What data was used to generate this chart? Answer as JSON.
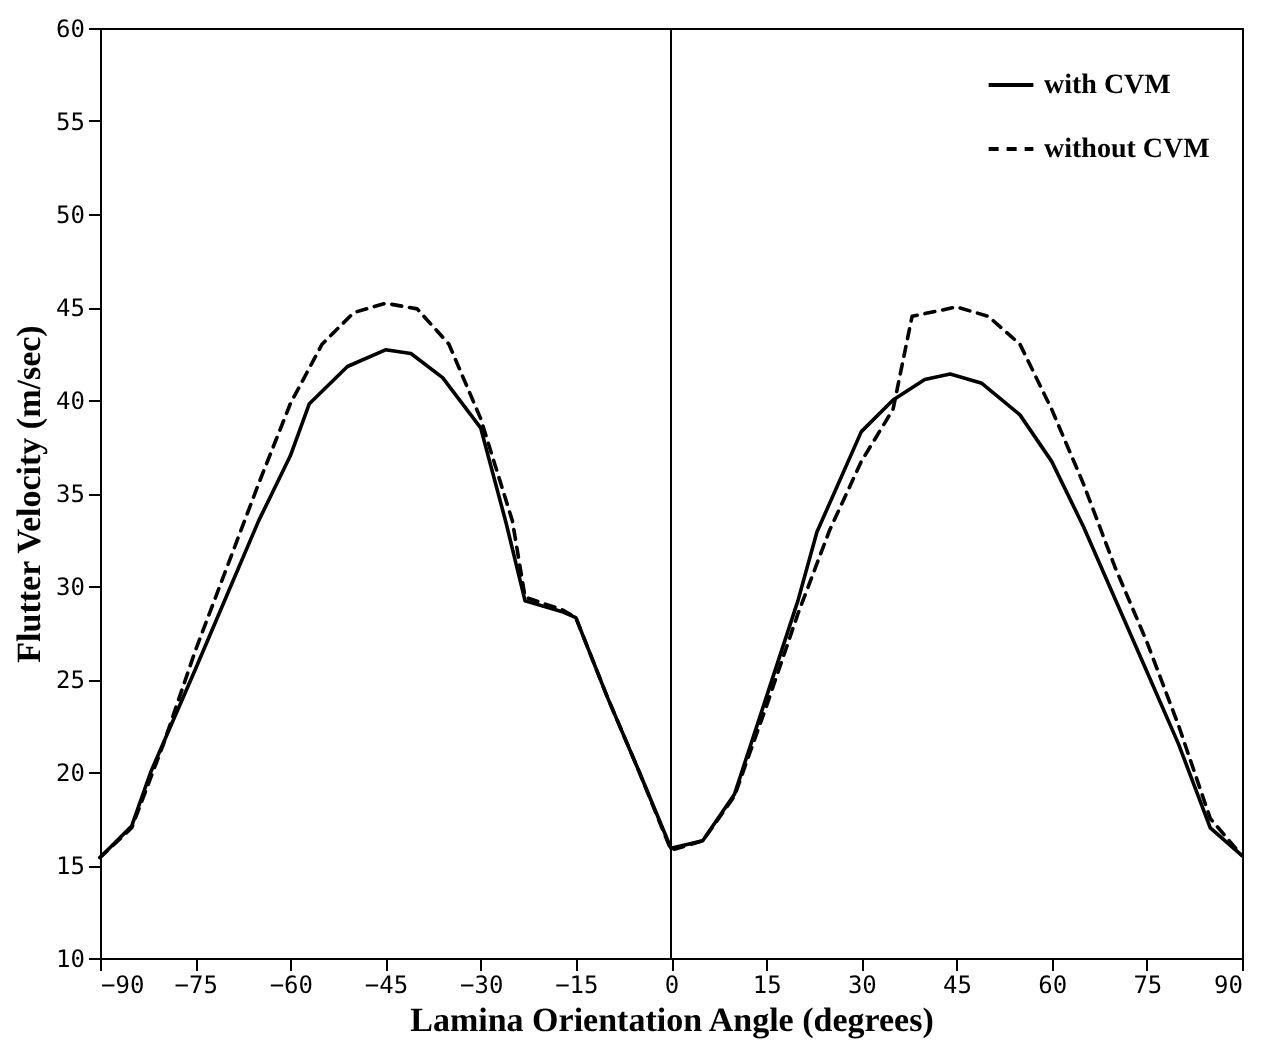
{
  "chart_data": {
    "type": "line",
    "xlabel": "Lamina Orientation Angle (degrees)",
    "ylabel": "Flutter Velocity (m/sec)",
    "xlim": [
      -90,
      90
    ],
    "xticks": [
      -90,
      -75,
      -60,
      -45,
      -30,
      -15,
      0,
      15,
      30,
      45,
      60,
      75,
      90
    ],
    "ylim": [
      10,
      60
    ],
    "yticks": [
      10,
      15,
      20,
      25,
      30,
      35,
      40,
      45,
      50,
      55,
      60
    ],
    "grid": false,
    "legend": "top right",
    "marker": "none",
    "ref_lines": [
      {
        "axis": "x",
        "value": 0,
        "color": "#000000",
        "line_style": "solid"
      }
    ],
    "series": [
      {
        "name": "with CVM",
        "color": "#000000",
        "line_style": "solid",
        "x": [
          -90,
          -85,
          -82,
          -75,
          -70,
          -65,
          -60,
          -57,
          -51,
          -45,
          -41,
          -36,
          -30,
          -26,
          -23,
          -17,
          -15,
          -10,
          -5,
          0,
          5,
          10,
          15,
          20,
          23,
          30,
          35,
          40,
          44,
          49,
          55,
          60,
          65,
          70,
          75,
          80,
          85,
          90
        ],
        "values": [
          15.4,
          17.1,
          20,
          25.5,
          29.5,
          33.5,
          37,
          39.8,
          41.8,
          42.7,
          42.5,
          41.2,
          38.5,
          33.4,
          29.2,
          28.6,
          28.3,
          24,
          20,
          15.9,
          16.3,
          18.8,
          24,
          29.2,
          32.9,
          38.3,
          40,
          41.1,
          41.4,
          40.9,
          39.2,
          36.7,
          33.2,
          29.3,
          25.4,
          21.5,
          17,
          15.5
        ]
      },
      {
        "name": "without CVM",
        "color": "#000000",
        "line_style": "dashed",
        "x": [
          -90,
          -85,
          -80,
          -75,
          -70,
          -65,
          -60,
          -55,
          -50,
          -45,
          -40,
          -35,
          -30,
          -25,
          -23,
          -17,
          -15,
          -10,
          -5,
          0,
          5,
          10,
          15,
          20,
          25,
          30,
          35,
          38,
          45,
          50,
          55,
          60,
          65,
          70,
          75,
          80,
          85,
          90
        ],
        "values": [
          15.4,
          17,
          21.5,
          26.5,
          31,
          35.5,
          39.8,
          43,
          44.7,
          45.2,
          44.9,
          43,
          39,
          33.5,
          29.4,
          28.7,
          28.3,
          24,
          20,
          15.8,
          16.3,
          18.7,
          23.5,
          28.5,
          33,
          36.7,
          39.5,
          44.5,
          45,
          44.5,
          43,
          39.5,
          35.5,
          31,
          27,
          22.5,
          17.5,
          15.5
        ]
      }
    ]
  }
}
